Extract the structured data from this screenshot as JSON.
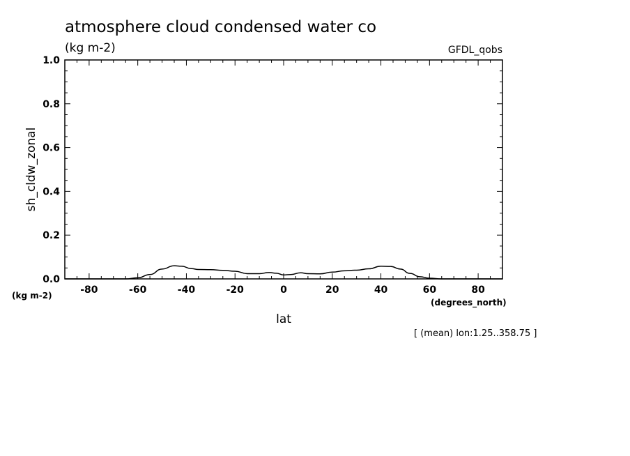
{
  "chart_data": {
    "type": "line",
    "title": "atmosphere cloud condensed water co",
    "units": "(kg m-2)",
    "source_tag": "GFDL_qobs",
    "xlabel": "lat",
    "x_units": "(degrees_north)",
    "ylabel": "sh_cldw_zonal",
    "y_units": "(kg m-2)",
    "note": "[ (mean) lon:1.25..358.75 ]",
    "xlim": [
      -90,
      90
    ],
    "ylim": [
      0,
      1.0
    ],
    "x_ticks": [
      -80,
      -60,
      -40,
      -20,
      0,
      20,
      40,
      60,
      80
    ],
    "x_tick_labels": [
      "-80",
      "-60",
      "-40",
      "-20",
      "0",
      "20",
      "40",
      "60",
      "80"
    ],
    "y_ticks": [
      0.0,
      0.2,
      0.4,
      0.6,
      0.8,
      1.0
    ],
    "y_tick_labels": [
      "0.0",
      "0.2",
      "0.4",
      "0.6",
      "0.8",
      "1.0"
    ],
    "grid": false,
    "series": [
      {
        "x": [
          -90,
          -80,
          -70,
          -65,
          -60,
          -55,
          -50,
          -45,
          -42,
          -38,
          -35,
          -30,
          -25,
          -20,
          -15,
          -10,
          -6,
          -3,
          0,
          3,
          7,
          10,
          15,
          20,
          25,
          30,
          35,
          40,
          44,
          48,
          52,
          56,
          60,
          65,
          70,
          80,
          90
        ],
        "y": [
          0.0,
          0.0,
          0.0,
          0.0,
          0.005,
          0.02,
          0.045,
          0.06,
          0.058,
          0.047,
          0.043,
          0.042,
          0.039,
          0.035,
          0.024,
          0.024,
          0.029,
          0.026,
          0.018,
          0.02,
          0.028,
          0.024,
          0.023,
          0.031,
          0.037,
          0.04,
          0.046,
          0.058,
          0.057,
          0.045,
          0.025,
          0.01,
          0.003,
          0.0,
          0.0,
          0.0,
          0.0
        ],
        "color": "#000000"
      }
    ]
  }
}
